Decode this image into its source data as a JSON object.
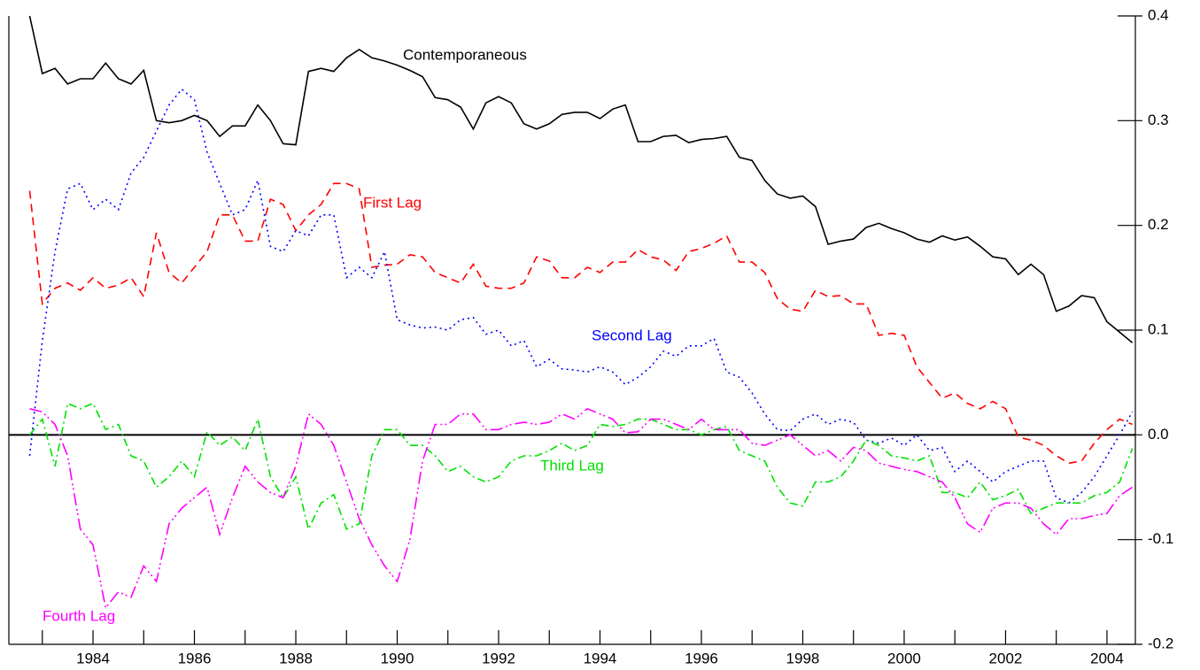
{
  "chart_data": {
    "type": "line",
    "x": [
      1982.75,
      1983,
      1983.25,
      1983.5,
      1983.75,
      1984,
      1984.25,
      1984.5,
      1984.75,
      1985,
      1985.25,
      1985.5,
      1985.75,
      1986,
      1986.25,
      1986.5,
      1986.75,
      1987,
      1987.25,
      1987.5,
      1987.75,
      1988,
      1988.25,
      1988.5,
      1988.75,
      1989,
      1989.25,
      1989.5,
      1989.75,
      1990,
      1990.25,
      1990.5,
      1990.75,
      1991,
      1991.25,
      1991.5,
      1991.75,
      1992,
      1992.25,
      1992.5,
      1992.75,
      1993,
      1993.25,
      1993.5,
      1993.75,
      1994,
      1994.25,
      1994.5,
      1994.75,
      1995,
      1995.25,
      1995.5,
      1995.75,
      1996,
      1996.25,
      1996.5,
      1996.75,
      1997,
      1997.25,
      1997.5,
      1997.75,
      1998,
      1998.25,
      1998.5,
      1998.75,
      1999,
      1999.25,
      1999.5,
      1999.75,
      2000,
      2000.25,
      2000.5,
      2000.75,
      2001,
      2001.25,
      2001.5,
      2001.75,
      2002,
      2002.25,
      2002.5,
      2002.75,
      2003,
      2003.25,
      2003.5,
      2003.75,
      2004,
      2004.25,
      2004.5
    ],
    "series": [
      {
        "name": "Contemporaneous",
        "color": "#000000",
        "values": [
          0.4,
          0.345,
          0.35,
          0.335,
          0.34,
          0.34,
          0.355,
          0.34,
          0.335,
          0.348,
          0.3,
          0.298,
          0.3,
          0.305,
          0.3,
          0.285,
          0.295,
          0.295,
          0.315,
          0.3,
          0.278,
          0.277,
          0.347,
          0.35,
          0.347,
          0.36,
          0.368,
          0.36,
          0.357,
          0.353,
          0.348,
          0.342,
          0.322,
          0.32,
          0.313,
          0.292,
          0.317,
          0.323,
          0.317,
          0.297,
          0.292,
          0.297,
          0.306,
          0.308,
          0.308,
          0.302,
          0.311,
          0.315,
          0.28,
          0.28,
          0.285,
          0.286,
          0.279,
          0.282,
          0.283,
          0.285,
          0.265,
          0.262,
          0.243,
          0.23,
          0.226,
          0.228,
          0.218,
          0.182,
          0.185,
          0.187,
          0.198,
          0.202,
          0.197,
          0.193,
          0.187,
          0.184,
          0.19,
          0.186,
          0.189,
          0.18,
          0.17,
          0.168,
          0.153,
          0.163,
          0.153,
          0.118,
          0.123,
          0.133,
          0.131,
          0.108,
          0.098,
          0.088
        ]
      },
      {
        "name": "First Lag",
        "color": "#ff0000",
        "values": [
          0.233,
          0.125,
          0.14,
          0.145,
          0.138,
          0.15,
          0.14,
          0.143,
          0.15,
          0.132,
          0.193,
          0.155,
          0.145,
          0.16,
          0.175,
          0.21,
          0.21,
          0.185,
          0.185,
          0.225,
          0.22,
          0.195,
          0.21,
          0.22,
          0.24,
          0.24,
          0.235,
          0.16,
          0.162,
          0.163,
          0.172,
          0.17,
          0.155,
          0.15,
          0.145,
          0.163,
          0.142,
          0.14,
          0.14,
          0.145,
          0.17,
          0.166,
          0.15,
          0.15,
          0.16,
          0.155,
          0.165,
          0.165,
          0.177,
          0.17,
          0.167,
          0.157,
          0.175,
          0.178,
          0.183,
          0.19,
          0.165,
          0.165,
          0.155,
          0.13,
          0.12,
          0.118,
          0.138,
          0.132,
          0.133,
          0.125,
          0.125,
          0.095,
          0.097,
          0.095,
          0.065,
          0.05,
          0.035,
          0.04,
          0.03,
          0.025,
          0.032,
          0.025,
          -0.002,
          -0.005,
          -0.01,
          -0.02,
          -0.027,
          -0.025,
          -0.008,
          0.005,
          0.015,
          0.01
        ]
      },
      {
        "name": "Second Lag",
        "color": "#0000ff",
        "values": [
          -0.02,
          0.09,
          0.175,
          0.235,
          0.24,
          0.215,
          0.225,
          0.215,
          0.25,
          0.265,
          0.29,
          0.315,
          0.33,
          0.32,
          0.27,
          0.24,
          0.21,
          0.215,
          0.243,
          0.18,
          0.175,
          0.195,
          0.19,
          0.21,
          0.21,
          0.15,
          0.16,
          0.15,
          0.175,
          0.11,
          0.105,
          0.102,
          0.103,
          0.1,
          0.11,
          0.112,
          0.096,
          0.1,
          0.085,
          0.09,
          0.065,
          0.072,
          0.063,
          0.062,
          0.06,
          0.065,
          0.06,
          0.048,
          0.055,
          0.065,
          0.08,
          0.075,
          0.085,
          0.085,
          0.092,
          0.06,
          0.055,
          0.04,
          0.02,
          0.005,
          0.004,
          0.015,
          0.02,
          0.01,
          0.015,
          0.012,
          -0.005,
          -0.008,
          -0.003,
          -0.01,
          0.0,
          -0.015,
          -0.012,
          -0.035,
          -0.025,
          -0.035,
          -0.045,
          -0.035,
          -0.03,
          -0.025,
          -0.025,
          -0.06,
          -0.065,
          -0.055,
          -0.04,
          -0.02,
          0.0,
          0.022
        ]
      },
      {
        "name": "Third Lag",
        "color": "#00e000",
        "values": [
          0.0,
          0.015,
          -0.03,
          0.03,
          0.025,
          0.03,
          0.005,
          0.01,
          -0.02,
          -0.025,
          -0.05,
          -0.04,
          -0.025,
          -0.04,
          0.003,
          -0.01,
          -0.002,
          -0.015,
          0.015,
          -0.04,
          -0.06,
          -0.04,
          -0.09,
          -0.065,
          -0.057,
          -0.09,
          -0.085,
          -0.02,
          0.005,
          0.005,
          -0.01,
          -0.01,
          -0.02,
          -0.035,
          -0.03,
          -0.04,
          -0.045,
          -0.04,
          -0.025,
          -0.02,
          -0.02,
          -0.015,
          -0.008,
          -0.015,
          -0.01,
          0.01,
          0.008,
          0.01,
          0.015,
          0.015,
          0.01,
          0.005,
          0.005,
          0.0,
          0.005,
          0.008,
          -0.015,
          -0.02,
          -0.025,
          -0.05,
          -0.065,
          -0.068,
          -0.045,
          -0.045,
          -0.04,
          -0.025,
          -0.005,
          -0.01,
          -0.02,
          -0.022,
          -0.025,
          -0.02,
          -0.055,
          -0.055,
          -0.06,
          -0.045,
          -0.062,
          -0.058,
          -0.052,
          -0.075,
          -0.07,
          -0.065,
          -0.065,
          -0.065,
          -0.058,
          -0.055,
          -0.045,
          -0.013
        ]
      },
      {
        "name": "Fourth Lag",
        "color": "#ff00ff",
        "values": [
          0.025,
          0.022,
          0.01,
          -0.02,
          -0.09,
          -0.105,
          -0.165,
          -0.15,
          -0.155,
          -0.125,
          -0.14,
          -0.085,
          -0.07,
          -0.06,
          -0.05,
          -0.095,
          -0.06,
          -0.03,
          -0.045,
          -0.055,
          -0.06,
          -0.03,
          0.02,
          0.01,
          -0.01,
          -0.045,
          -0.08,
          -0.105,
          -0.125,
          -0.14,
          -0.1,
          -0.025,
          0.01,
          0.01,
          0.02,
          0.02,
          0.005,
          0.005,
          0.01,
          0.012,
          0.01,
          0.012,
          0.02,
          0.015,
          0.025,
          0.02,
          0.015,
          0.002,
          0.003,
          0.015,
          0.015,
          0.01,
          0.005,
          0.015,
          0.005,
          0.005,
          0.005,
          -0.008,
          -0.01,
          -0.005,
          0.0,
          -0.01,
          -0.02,
          -0.015,
          -0.025,
          -0.012,
          -0.015,
          -0.027,
          -0.03,
          -0.033,
          -0.035,
          -0.04,
          -0.045,
          -0.06,
          -0.085,
          -0.093,
          -0.07,
          -0.065,
          -0.065,
          -0.07,
          -0.085,
          -0.095,
          -0.08,
          -0.08,
          -0.077,
          -0.075,
          -0.058,
          -0.05
        ]
      }
    ],
    "xlim": [
      1982.34,
      2004.56
    ],
    "xticks": [
      1984,
      1986,
      1988,
      1990,
      1992,
      1994,
      1996,
      1998,
      2000,
      2002,
      2004
    ],
    "xminorticks": [
      1983,
      1985,
      1987,
      1989,
      1991,
      1993,
      1995,
      1997,
      1999,
      2001,
      2003
    ],
    "ylim": [
      -0.2,
      0.4
    ],
    "yticks": [
      -0.2,
      -0.1,
      {
        "value": 0,
        "label": "0.0"
      },
      0.1,
      0.2,
      0.3,
      0.4
    ],
    "zero_line": true
  }
}
